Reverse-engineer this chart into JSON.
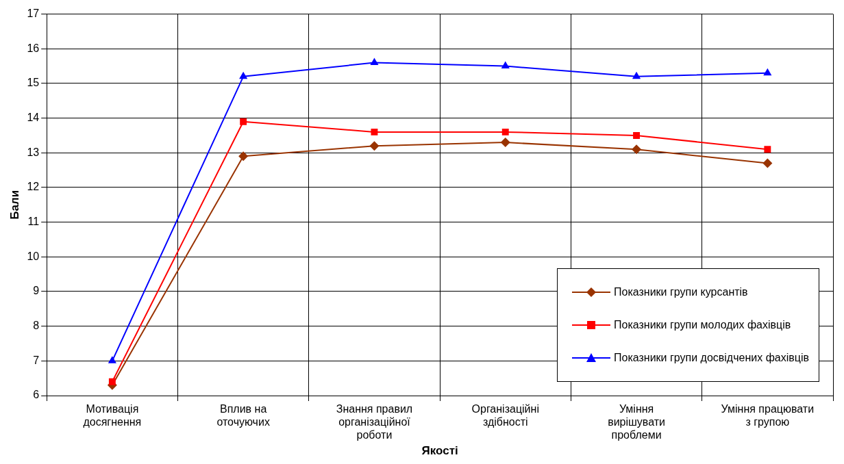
{
  "chart_data": {
    "type": "line",
    "xlabel": "Якості",
    "ylabel": "Бали",
    "categories": [
      "Мотивація досягнення",
      "Вплив на оточуючих",
      "Знання правил організаційної роботи",
      "Організаційні здібності",
      "Уміння вирішувати проблеми",
      "Уміння працювати з групою"
    ],
    "series": [
      {
        "name": "Показники групи курсантів",
        "color": "#993300",
        "marker": "diamond",
        "values": [
          6.3,
          12.9,
          13.2,
          13.3,
          13.1,
          12.7
        ]
      },
      {
        "name": "Показники групи молодих фахівців",
        "color": "#ff0000",
        "marker": "square",
        "values": [
          6.4,
          13.9,
          13.6,
          13.6,
          13.5,
          13.1
        ]
      },
      {
        "name": "Показники групи досвідчених фахівців",
        "color": "#0000ff",
        "marker": "triangle",
        "values": [
          7.0,
          15.2,
          15.6,
          15.5,
          15.2,
          15.3
        ]
      }
    ],
    "ylim": [
      6,
      17
    ],
    "yticks": [
      6,
      7,
      8,
      9,
      10,
      11,
      12,
      13,
      14,
      15,
      16,
      17
    ],
    "grid": true,
    "legend": "bottom right",
    "line_style": "solid"
  }
}
